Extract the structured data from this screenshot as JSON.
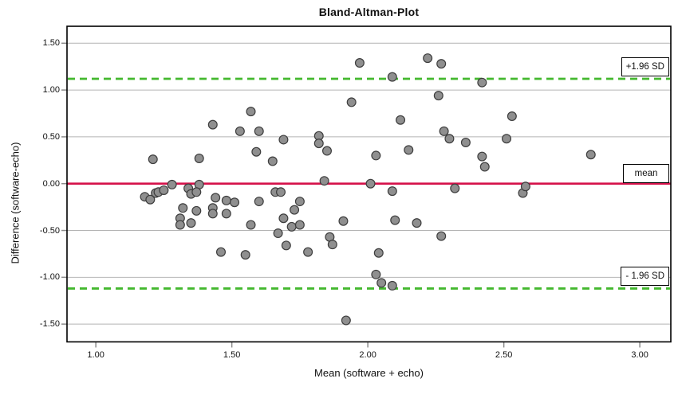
{
  "chart_data": {
    "type": "scatter",
    "title": "Bland-Altman-Plot",
    "xlabel": "Mean (software + echo)",
    "ylabel": "Difference (software-echo)",
    "xlim": [
      0.894,
      3.114
    ],
    "ylim": [
      -1.69,
      1.681
    ],
    "grid": true,
    "x_ticks": [
      1.0,
      1.5,
      2.0,
      2.5,
      3.0
    ],
    "x_tick_labels": [
      "1.00",
      "1.50",
      "2.00",
      "2.50",
      "3.00"
    ],
    "y_ticks": [
      1.5,
      1.0,
      0.5,
      0.0,
      -0.5,
      -1.0,
      -1.5
    ],
    "y_tick_labels": [
      "1.50",
      "1.00",
      "0.50",
      "0.00",
      "-0.50",
      "-1.00",
      "-1.50"
    ],
    "colors": {
      "gridline": "#b4b4b4",
      "tick": "#8c8c8c",
      "axis_border": "#000000",
      "point_fill": "#8f8f8f",
      "point_stroke": "#3d3d3d",
      "mean_line": "#d5114a",
      "loa_line": "#44b82f"
    },
    "mean_line": {
      "value": 0.0,
      "label": "mean",
      "style": "solid"
    },
    "upper_loa": {
      "value": 1.12,
      "label": "+1.96 SD",
      "style": "dashed"
    },
    "lower_loa": {
      "value": -1.12,
      "label": "- 1.96 SD",
      "style": "dashed"
    },
    "point_radius": 5.4,
    "points": [
      [
        1.21,
        0.26
      ],
      [
        1.38,
        0.27
      ],
      [
        1.43,
        0.63
      ],
      [
        1.53,
        0.56
      ],
      [
        1.57,
        0.77
      ],
      [
        1.59,
        0.34
      ],
      [
        1.6,
        0.56
      ],
      [
        1.65,
        0.24
      ],
      [
        1.69,
        0.47
      ],
      [
        1.82,
        0.51
      ],
      [
        1.82,
        0.43
      ],
      [
        1.85,
        0.35
      ],
      [
        1.94,
        0.87
      ],
      [
        1.97,
        1.29
      ],
      [
        2.03,
        0.3
      ],
      [
        2.09,
        1.14
      ],
      [
        2.12,
        0.68
      ],
      [
        2.15,
        0.36
      ],
      [
        2.22,
        1.34
      ],
      [
        2.26,
        0.94
      ],
      [
        2.27,
        1.28
      ],
      [
        2.28,
        0.56
      ],
      [
        2.3,
        0.48
      ],
      [
        2.36,
        0.44
      ],
      [
        2.42,
        1.08
      ],
      [
        2.42,
        0.29
      ],
      [
        2.43,
        0.18
      ],
      [
        2.51,
        0.48
      ],
      [
        2.53,
        0.72
      ],
      [
        2.82,
        0.31
      ],
      [
        1.28,
        -0.01
      ],
      [
        1.38,
        -0.01
      ],
      [
        1.84,
        0.03
      ],
      [
        2.01,
        0.0
      ],
      [
        1.18,
        -0.14
      ],
      [
        1.2,
        -0.17
      ],
      [
        1.22,
        -0.1
      ],
      [
        1.23,
        -0.09
      ],
      [
        1.25,
        -0.07
      ],
      [
        1.34,
        -0.05
      ],
      [
        1.35,
        -0.11
      ],
      [
        1.37,
        -0.09
      ],
      [
        1.32,
        -0.26
      ],
      [
        1.31,
        -0.37
      ],
      [
        1.31,
        -0.44
      ],
      [
        1.35,
        -0.42
      ],
      [
        1.37,
        -0.29
      ],
      [
        1.43,
        -0.26
      ],
      [
        1.43,
        -0.32
      ],
      [
        1.44,
        -0.15
      ],
      [
        1.48,
        -0.18
      ],
      [
        1.48,
        -0.32
      ],
      [
        1.51,
        -0.2
      ],
      [
        1.57,
        -0.44
      ],
      [
        1.6,
        -0.19
      ],
      [
        1.46,
        -0.73
      ],
      [
        1.55,
        -0.76
      ],
      [
        1.66,
        -0.09
      ],
      [
        1.68,
        -0.09
      ],
      [
        1.75,
        -0.19
      ],
      [
        1.73,
        -0.28
      ],
      [
        1.69,
        -0.37
      ],
      [
        1.72,
        -0.46
      ],
      [
        1.75,
        -0.44
      ],
      [
        1.67,
        -0.53
      ],
      [
        1.7,
        -0.66
      ],
      [
        1.78,
        -0.73
      ],
      [
        1.86,
        -0.57
      ],
      [
        1.87,
        -0.65
      ],
      [
        1.91,
        -0.4
      ],
      [
        2.04,
        -0.74
      ],
      [
        2.09,
        -0.08
      ],
      [
        2.1,
        -0.39
      ],
      [
        2.18,
        -0.42
      ],
      [
        2.27,
        -0.56
      ],
      [
        2.32,
        -0.05
      ],
      [
        2.03,
        -0.97
      ],
      [
        2.05,
        -1.06
      ],
      [
        2.09,
        -1.09
      ],
      [
        1.92,
        -1.46
      ],
      [
        2.57,
        -0.1
      ],
      [
        2.58,
        -0.03
      ]
    ]
  }
}
